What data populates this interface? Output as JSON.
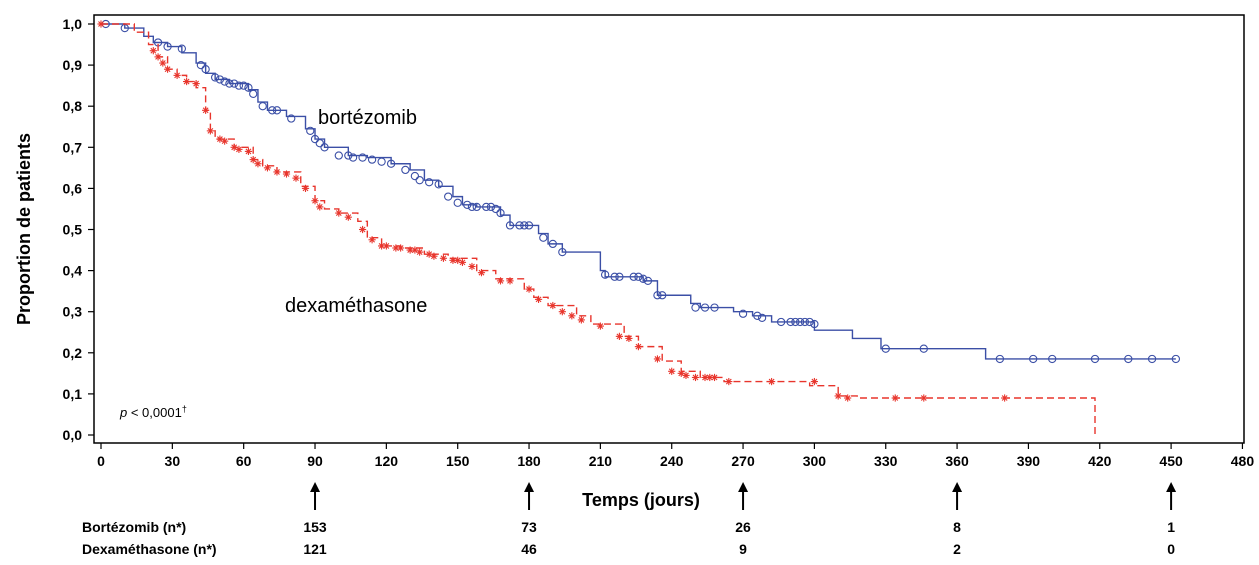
{
  "chart_data": {
    "type": "line",
    "xlabel": "Temps (jours)",
    "ylabel": "Proportion de patients",
    "xlim": [
      0,
      480
    ],
    "ylim": [
      0,
      1
    ],
    "x_ticks": [
      "0",
      "30",
      "60",
      "90",
      "120",
      "150",
      "180",
      "210",
      "240",
      "270",
      "300",
      "330",
      "360",
      "390",
      "420",
      "450",
      "480"
    ],
    "y_ticks": [
      "0,0",
      "0,1",
      "0,2",
      "0,3",
      "0,4",
      "0,5",
      "0,6",
      "0,7",
      "0,8",
      "0,9",
      "1,0"
    ],
    "annotation": {
      "p_prefix": "p",
      "p_value": " < 0,0001",
      "p_sup": "†"
    },
    "arrow_days": [
      90,
      180,
      270,
      360,
      450
    ],
    "series": [
      {
        "name": "bortézomib",
        "color": "#3b4fa6",
        "line_style": "solid",
        "marker": "circle",
        "steps": [
          [
            0,
            1.0
          ],
          [
            10,
            0.99
          ],
          [
            18,
            0.97
          ],
          [
            22,
            0.955
          ],
          [
            28,
            0.945
          ],
          [
            34,
            0.93
          ],
          [
            40,
            0.905
          ],
          [
            44,
            0.88
          ],
          [
            48,
            0.865
          ],
          [
            54,
            0.855
          ],
          [
            62,
            0.84
          ],
          [
            66,
            0.81
          ],
          [
            70,
            0.79
          ],
          [
            78,
            0.775
          ],
          [
            86,
            0.745
          ],
          [
            90,
            0.72
          ],
          [
            94,
            0.7
          ],
          [
            104,
            0.68
          ],
          [
            112,
            0.675
          ],
          [
            122,
            0.66
          ],
          [
            130,
            0.645
          ],
          [
            136,
            0.62
          ],
          [
            142,
            0.605
          ],
          [
            148,
            0.58
          ],
          [
            152,
            0.56
          ],
          [
            158,
            0.555
          ],
          [
            168,
            0.535
          ],
          [
            172,
            0.51
          ],
          [
            184,
            0.49
          ],
          [
            188,
            0.465
          ],
          [
            194,
            0.445
          ],
          [
            210,
            0.4
          ],
          [
            212,
            0.385
          ],
          [
            228,
            0.375
          ],
          [
            234,
            0.34
          ],
          [
            248,
            0.32
          ],
          [
            252,
            0.31
          ],
          [
            266,
            0.3
          ],
          [
            274,
            0.29
          ],
          [
            282,
            0.275
          ],
          [
            300,
            0.255
          ],
          [
            316,
            0.235
          ],
          [
            328,
            0.21
          ],
          [
            372,
            0.185
          ],
          [
            452,
            0.185
          ]
        ],
        "censor": [
          [
            2,
            1.0
          ],
          [
            10,
            0.99
          ],
          [
            24,
            0.955
          ],
          [
            28,
            0.945
          ],
          [
            34,
            0.94
          ],
          [
            42,
            0.9
          ],
          [
            44,
            0.89
          ],
          [
            48,
            0.87
          ],
          [
            50,
            0.865
          ],
          [
            52,
            0.86
          ],
          [
            54,
            0.855
          ],
          [
            56,
            0.855
          ],
          [
            58,
            0.85
          ],
          [
            60,
            0.85
          ],
          [
            62,
            0.845
          ],
          [
            64,
            0.83
          ],
          [
            68,
            0.8
          ],
          [
            72,
            0.79
          ],
          [
            74,
            0.79
          ],
          [
            80,
            0.77
          ],
          [
            88,
            0.74
          ],
          [
            90,
            0.72
          ],
          [
            92,
            0.71
          ],
          [
            94,
            0.7
          ],
          [
            100,
            0.68
          ],
          [
            104,
            0.68
          ],
          [
            106,
            0.675
          ],
          [
            110,
            0.675
          ],
          [
            114,
            0.67
          ],
          [
            118,
            0.665
          ],
          [
            122,
            0.66
          ],
          [
            128,
            0.645
          ],
          [
            132,
            0.63
          ],
          [
            134,
            0.62
          ],
          [
            138,
            0.615
          ],
          [
            142,
            0.61
          ],
          [
            146,
            0.58
          ],
          [
            150,
            0.565
          ],
          [
            154,
            0.56
          ],
          [
            156,
            0.555
          ],
          [
            158,
            0.555
          ],
          [
            162,
            0.555
          ],
          [
            164,
            0.555
          ],
          [
            166,
            0.55
          ],
          [
            168,
            0.54
          ],
          [
            172,
            0.51
          ],
          [
            176,
            0.51
          ],
          [
            178,
            0.51
          ],
          [
            180,
            0.51
          ],
          [
            186,
            0.48
          ],
          [
            190,
            0.465
          ],
          [
            194,
            0.445
          ],
          [
            212,
            0.39
          ],
          [
            216,
            0.385
          ],
          [
            218,
            0.385
          ],
          [
            224,
            0.385
          ],
          [
            226,
            0.385
          ],
          [
            228,
            0.38
          ],
          [
            230,
            0.375
          ],
          [
            234,
            0.34
          ],
          [
            236,
            0.34
          ],
          [
            250,
            0.31
          ],
          [
            254,
            0.31
          ],
          [
            258,
            0.31
          ],
          [
            270,
            0.295
          ],
          [
            276,
            0.29
          ],
          [
            278,
            0.285
          ],
          [
            286,
            0.275
          ],
          [
            290,
            0.275
          ],
          [
            292,
            0.275
          ],
          [
            294,
            0.275
          ],
          [
            296,
            0.275
          ],
          [
            298,
            0.275
          ],
          [
            300,
            0.27
          ],
          [
            330,
            0.21
          ],
          [
            346,
            0.21
          ],
          [
            378,
            0.185
          ],
          [
            392,
            0.185
          ],
          [
            400,
            0.185
          ],
          [
            418,
            0.185
          ],
          [
            432,
            0.185
          ],
          [
            442,
            0.185
          ],
          [
            452,
            0.185
          ]
        ]
      },
      {
        "name": "dexaméthasone",
        "color": "#e8352c",
        "line_style": "dashed",
        "marker": "star",
        "steps": [
          [
            0,
            1.0
          ],
          [
            14,
            0.98
          ],
          [
            20,
            0.95
          ],
          [
            24,
            0.92
          ],
          [
            28,
            0.89
          ],
          [
            32,
            0.875
          ],
          [
            36,
            0.86
          ],
          [
            40,
            0.845
          ],
          [
            44,
            0.79
          ],
          [
            46,
            0.74
          ],
          [
            48,
            0.72
          ],
          [
            56,
            0.7
          ],
          [
            64,
            0.67
          ],
          [
            68,
            0.655
          ],
          [
            74,
            0.64
          ],
          [
            84,
            0.605
          ],
          [
            90,
            0.57
          ],
          [
            94,
            0.55
          ],
          [
            100,
            0.54
          ],
          [
            108,
            0.52
          ],
          [
            112,
            0.48
          ],
          [
            118,
            0.46
          ],
          [
            126,
            0.455
          ],
          [
            136,
            0.44
          ],
          [
            146,
            0.43
          ],
          [
            158,
            0.4
          ],
          [
            166,
            0.38
          ],
          [
            178,
            0.355
          ],
          [
            182,
            0.335
          ],
          [
            188,
            0.315
          ],
          [
            200,
            0.29
          ],
          [
            206,
            0.27
          ],
          [
            220,
            0.24
          ],
          [
            226,
            0.215
          ],
          [
            236,
            0.18
          ],
          [
            244,
            0.155
          ],
          [
            252,
            0.14
          ],
          [
            262,
            0.13
          ],
          [
            298,
            0.12
          ],
          [
            310,
            0.095
          ],
          [
            318,
            0.09
          ],
          [
            418,
            0.0
          ]
        ],
        "censor": [
          [
            0,
            1.0
          ],
          [
            22,
            0.935
          ],
          [
            24,
            0.92
          ],
          [
            26,
            0.905
          ],
          [
            28,
            0.89
          ],
          [
            32,
            0.875
          ],
          [
            36,
            0.86
          ],
          [
            40,
            0.855
          ],
          [
            44,
            0.79
          ],
          [
            46,
            0.74
          ],
          [
            50,
            0.72
          ],
          [
            52,
            0.715
          ],
          [
            56,
            0.7
          ],
          [
            58,
            0.695
          ],
          [
            62,
            0.69
          ],
          [
            64,
            0.67
          ],
          [
            66,
            0.66
          ],
          [
            70,
            0.65
          ],
          [
            74,
            0.64
          ],
          [
            78,
            0.635
          ],
          [
            82,
            0.625
          ],
          [
            86,
            0.6
          ],
          [
            90,
            0.57
          ],
          [
            92,
            0.555
          ],
          [
            100,
            0.54
          ],
          [
            104,
            0.53
          ],
          [
            110,
            0.5
          ],
          [
            114,
            0.475
          ],
          [
            118,
            0.46
          ],
          [
            120,
            0.46
          ],
          [
            124,
            0.455
          ],
          [
            126,
            0.455
          ],
          [
            130,
            0.45
          ],
          [
            132,
            0.45
          ],
          [
            134,
            0.445
          ],
          [
            138,
            0.44
          ],
          [
            140,
            0.435
          ],
          [
            144,
            0.43
          ],
          [
            148,
            0.425
          ],
          [
            150,
            0.425
          ],
          [
            152,
            0.42
          ],
          [
            156,
            0.41
          ],
          [
            160,
            0.395
          ],
          [
            168,
            0.375
          ],
          [
            172,
            0.375
          ],
          [
            180,
            0.355
          ],
          [
            184,
            0.33
          ],
          [
            190,
            0.315
          ],
          [
            194,
            0.3
          ],
          [
            198,
            0.29
          ],
          [
            202,
            0.28
          ],
          [
            210,
            0.265
          ],
          [
            218,
            0.24
          ],
          [
            222,
            0.235
          ],
          [
            226,
            0.215
          ],
          [
            234,
            0.185
          ],
          [
            240,
            0.155
          ],
          [
            244,
            0.15
          ],
          [
            246,
            0.145
          ],
          [
            250,
            0.14
          ],
          [
            254,
            0.14
          ],
          [
            256,
            0.14
          ],
          [
            258,
            0.14
          ],
          [
            264,
            0.13
          ],
          [
            282,
            0.13
          ],
          [
            300,
            0.13
          ],
          [
            310,
            0.095
          ],
          [
            314,
            0.09
          ],
          [
            334,
            0.09
          ],
          [
            346,
            0.09
          ],
          [
            380,
            0.09
          ]
        ]
      }
    ]
  },
  "risk_table": {
    "rows": [
      {
        "label": "Bortézomib (n*)",
        "values": [
          {
            "day": 90,
            "n": "153"
          },
          {
            "day": 180,
            "n": "73"
          },
          {
            "day": 270,
            "n": "26"
          },
          {
            "day": 360,
            "n": "8"
          },
          {
            "day": 450,
            "n": "1"
          }
        ]
      },
      {
        "label": "Dexaméthasone (n*)",
        "values": [
          {
            "day": 90,
            "n": "121"
          },
          {
            "day": 180,
            "n": "46"
          },
          {
            "day": 270,
            "n": "9"
          },
          {
            "day": 360,
            "n": "2"
          },
          {
            "day": 450,
            "n": "0"
          }
        ]
      }
    ]
  }
}
